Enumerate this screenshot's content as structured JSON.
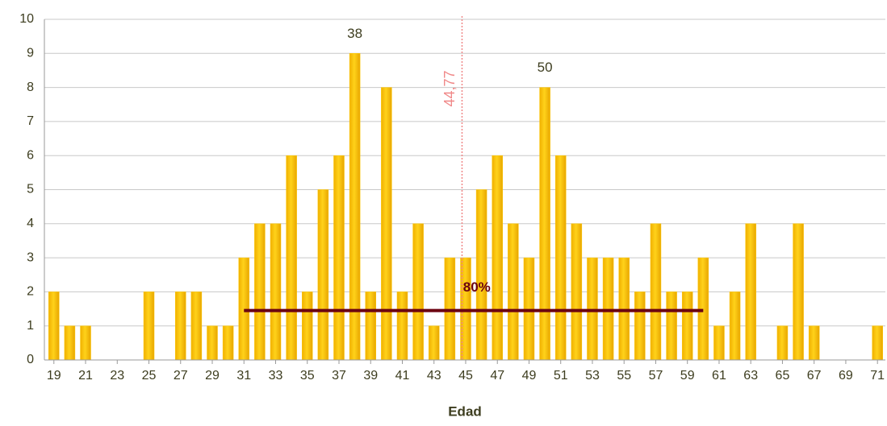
{
  "chart_data": {
    "type": "bar",
    "x_label": "Edad",
    "x": [
      19,
      20,
      21,
      22,
      23,
      24,
      25,
      26,
      27,
      28,
      29,
      30,
      31,
      32,
      33,
      34,
      35,
      36,
      37,
      38,
      39,
      40,
      41,
      42,
      43,
      44,
      45,
      46,
      47,
      48,
      49,
      50,
      51,
      52,
      53,
      54,
      55,
      56,
      57,
      58,
      59,
      60,
      61,
      62,
      63,
      64,
      65,
      66,
      67,
      68,
      69,
      70,
      71
    ],
    "values": [
      2,
      1,
      1,
      0,
      0,
      0,
      2,
      0,
      2,
      2,
      1,
      1,
      3,
      4,
      4,
      6,
      2,
      5,
      6,
      9,
      2,
      8,
      2,
      4,
      1,
      3,
      3,
      5,
      6,
      4,
      3,
      8,
      6,
      4,
      3,
      3,
      3,
      2,
      4,
      2,
      2,
      3,
      1,
      2,
      4,
      0,
      1,
      4,
      1,
      0,
      0,
      0,
      1
    ],
    "color": "#ffc800",
    "xlim": [
      18.4,
      71.5
    ],
    "xticks": [
      19,
      21,
      23,
      25,
      27,
      29,
      31,
      33,
      35,
      37,
      39,
      41,
      43,
      45,
      47,
      49,
      51,
      53,
      55,
      57,
      59,
      61,
      63,
      65,
      67,
      69,
      71
    ],
    "ylim": [
      0,
      10
    ],
    "yticks": [
      0,
      1,
      2,
      3,
      4,
      5,
      6,
      7,
      8,
      9,
      10
    ],
    "grid": true,
    "annotations": [
      {
        "text": "38",
        "x": 38,
        "y": 9,
        "kind": "point"
      },
      {
        "text": "50",
        "x": 50,
        "y": 8,
        "kind": "point"
      },
      {
        "text": "44,77",
        "x": 44.77,
        "kind": "vline",
        "color": "#f08888"
      },
      {
        "text": "80%",
        "from": 31,
        "to": 60,
        "y": 1.45,
        "kind": "hline",
        "color": "#6b0010"
      }
    ]
  }
}
